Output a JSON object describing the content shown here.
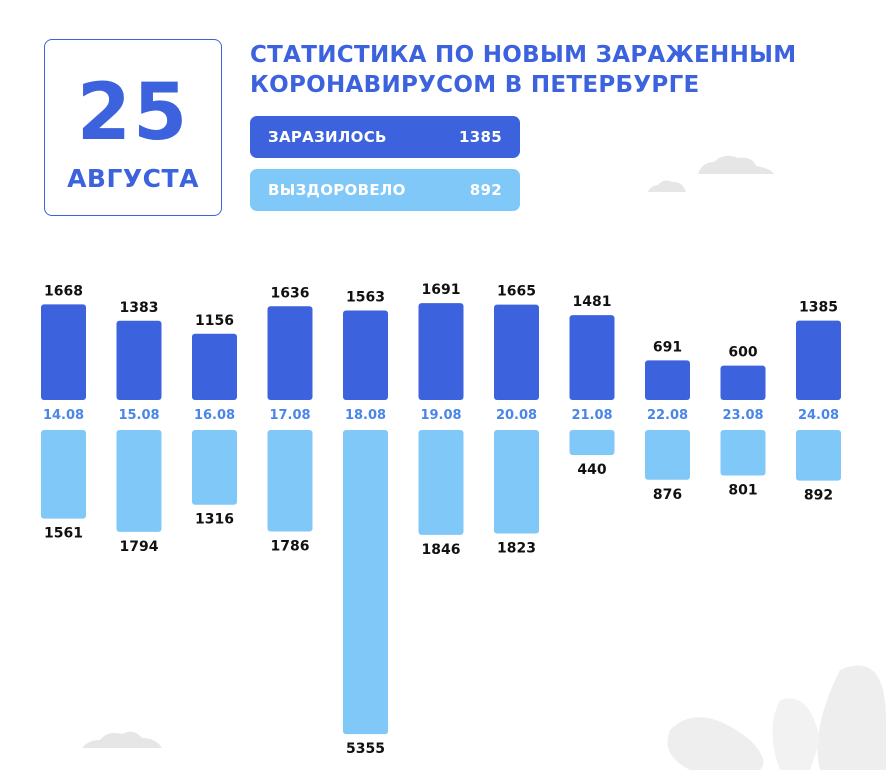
{
  "date": {
    "day": "25",
    "month": "АВГУСТА"
  },
  "title_lines": [
    "СТАТИСТИКА ПО НОВЫМ ЗАРАЖЕННЫМ",
    "КОРОНАВИРУСОМ В ПЕТЕРБУРГЕ"
  ],
  "summary": {
    "infected": {
      "label": "ЗАРАЗИЛОСЬ",
      "value": "1385"
    },
    "recovered": {
      "label": "ВЫЗДОРОВЕЛО",
      "value": "892"
    }
  },
  "colors": {
    "infected": "#3c62dd",
    "recovered": "#7fc8f8",
    "date_label": "#4a86e8"
  },
  "chart_data": {
    "type": "bar",
    "categories": [
      "14.08",
      "15.08",
      "16.08",
      "17.08",
      "18.08",
      "19.08",
      "20.08",
      "21.08",
      "22.08",
      "23.08",
      "24.08"
    ],
    "series": [
      {
        "name": "ЗАРАЗИЛОСЬ",
        "direction": "up",
        "values": [
          1668,
          1383,
          1156,
          1636,
          1563,
          1691,
          1665,
          1481,
          691,
          600,
          1385
        ]
      },
      {
        "name": "ВЫЗДОРОВЕЛО",
        "direction": "down",
        "values": [
          1561,
          1794,
          1316,
          1786,
          5355,
          1846,
          1823,
          440,
          876,
          801,
          892
        ]
      }
    ],
    "title": "",
    "xlabel": "",
    "ylabel": "",
    "grid": false
  }
}
